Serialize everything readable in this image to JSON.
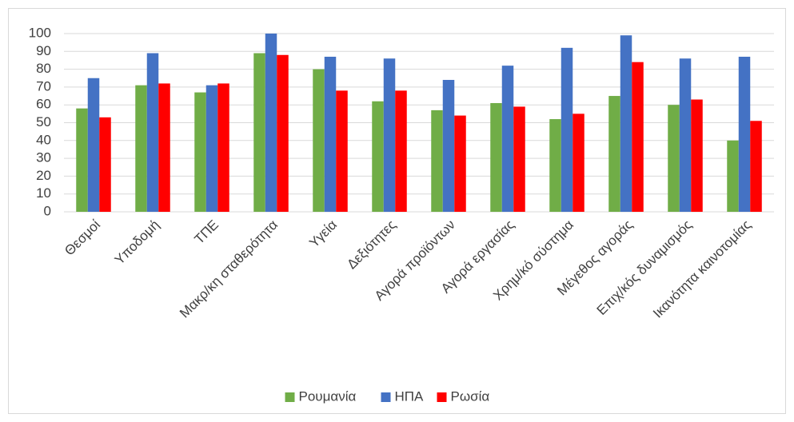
{
  "chart_data": {
    "type": "bar",
    "categories": [
      "Θεσμοί",
      "Υποδομή",
      "ΤΠΕ",
      "Μακρ/κη σταθερότητα",
      "Υγεία",
      "Δεξιότητες",
      "Αγορά προϊόντων",
      "Αγορά εργασίας",
      "Χρημ/κό σύστημα",
      "Μέγεθος αγοράς",
      "Επιχ/κός δυναμισμός",
      "Ικανότητα καινοτομίας"
    ],
    "series": [
      {
        "name": "Ρουμανία",
        "color": "#70ad47",
        "values": [
          58,
          71,
          67,
          89,
          80,
          62,
          57,
          61,
          52,
          65,
          60,
          40
        ]
      },
      {
        "name": "ΗΠΑ",
        "color": "#4472c4",
        "values": [
          75,
          89,
          71,
          100,
          87,
          86,
          74,
          82,
          92,
          99,
          86,
          87
        ]
      },
      {
        "name": "Ρωσία",
        "color": "#ff0000",
        "values": [
          53,
          72,
          72,
          88,
          68,
          68,
          54,
          59,
          55,
          84,
          63,
          51
        ]
      }
    ],
    "ylim": [
      0,
      100
    ],
    "yticks": [
      0,
      10,
      20,
      30,
      40,
      50,
      60,
      70,
      80,
      90,
      100
    ],
    "grid": true,
    "legend": "bottom"
  }
}
